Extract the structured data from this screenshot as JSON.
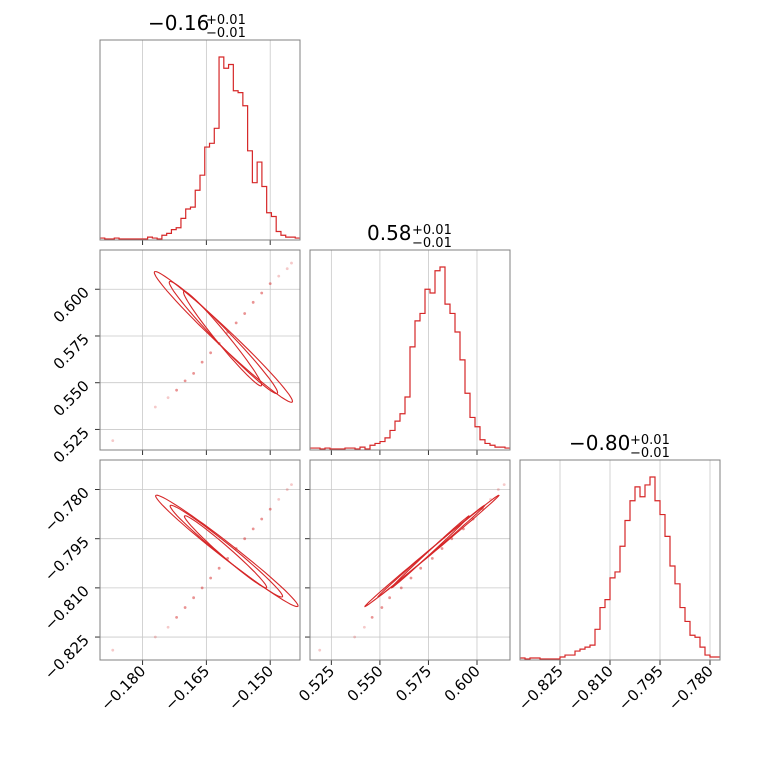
{
  "chart_data": [
    {
      "type": "histogram",
      "title": "−0.16",
      "title_sup": "+0.01",
      "title_sub": "−0.01",
      "param": "p0",
      "color": "#d62728",
      "xlim": [
        -0.19,
        -0.143
      ],
      "xticks": [
        -0.18,
        -0.165,
        -0.15
      ],
      "xticklabels": [
        "−0.180",
        "−0.165",
        "−0.150"
      ],
      "bin_values": [
        0.005,
        0,
        0,
        0.005,
        0,
        0,
        0,
        0,
        0,
        0,
        0.01,
        0.005,
        0,
        0.02,
        0.03,
        0.05,
        0.06,
        0.11,
        0.16,
        0.17,
        0.26,
        0.34,
        0.49,
        0.51,
        0.59,
        0.97,
        0.91,
        0.93,
        0.79,
        0.78,
        0.71,
        0.47,
        0.3,
        0.41,
        0.28,
        0.14,
        0.12,
        0.04,
        0.02,
        0.01,
        0.01,
        0.005
      ]
    },
    {
      "type": "histogram",
      "title": "0.58",
      "title_sup": "+0.01",
      "title_sub": "−0.01",
      "param": "p1",
      "color": "#d62728",
      "xlim": [
        0.514,
        0.617
      ],
      "xticks": [
        0.525,
        0.55,
        0.575,
        0.6
      ],
      "xticklabels": [
        "0.525",
        "0.550",
        "0.575",
        "0.600"
      ],
      "bin_values": [
        0.005,
        0.005,
        0,
        0.005,
        0,
        0,
        0,
        0.005,
        0.005,
        0,
        0.01,
        0,
        0.02,
        0.03,
        0.04,
        0.06,
        0.1,
        0.15,
        0.19,
        0.28,
        0.55,
        0.69,
        0.73,
        0.86,
        0.84,
        0.96,
        0.98,
        0.78,
        0.73,
        0.63,
        0.48,
        0.3,
        0.17,
        0.12,
        0.05,
        0.03,
        0.02,
        0.01,
        0.01,
        0.005
      ]
    },
    {
      "type": "histogram",
      "title": "−0.80",
      "title_sup": "+0.01",
      "title_sub": "−0.01",
      "param": "p2",
      "color": "#d62728",
      "xlim": [
        -0.837,
        -0.777
      ],
      "xticks": [
        -0.825,
        -0.81,
        -0.795,
        -0.78
      ],
      "xticklabels": [
        "−0.825",
        "−0.810",
        "−0.795",
        "−0.780"
      ],
      "bin_values": [
        0.005,
        0,
        0.005,
        0.005,
        0,
        0,
        0,
        0,
        0.01,
        0.02,
        0.02,
        0.04,
        0.05,
        0.06,
        0.07,
        0.15,
        0.26,
        0.3,
        0.41,
        0.44,
        0.57,
        0.7,
        0.8,
        0.87,
        0.82,
        0.88,
        0.92,
        0.8,
        0.73,
        0.62,
        0.47,
        0.38,
        0.26,
        0.19,
        0.12,
        0.11,
        0.06,
        0.02,
        0.01,
        0.01
      ]
    },
    {
      "type": "scatter",
      "subtype": "contour",
      "x_param": "p0",
      "y_param": "p1",
      "color": "#d62728",
      "xlim": [
        -0.19,
        -0.143
      ],
      "ylim": [
        0.514,
        0.621
      ],
      "xticks": [
        -0.18,
        -0.165,
        -0.15
      ],
      "yticks": [
        0.525,
        0.55,
        0.575,
        0.6
      ],
      "yticklabels": [
        "0.525",
        "0.550",
        "0.575",
        "0.600"
      ],
      "x": [
        -0.187,
        -0.177,
        -0.174,
        -0.172,
        -0.17,
        -0.168,
        -0.166,
        -0.164,
        -0.162,
        -0.16,
        -0.158,
        -0.156,
        -0.154,
        -0.152,
        -0.15,
        -0.148,
        -0.146,
        -0.145
      ],
      "y": [
        0.519,
        0.537,
        0.542,
        0.546,
        0.551,
        0.555,
        0.561,
        0.566,
        0.571,
        0.577,
        0.582,
        0.587,
        0.593,
        0.598,
        0.603,
        0.607,
        0.611,
        0.614
      ],
      "contours": [
        {
          "cx": -0.1612,
          "cy": 0.5736,
          "dx": -0.009,
          "dy": 0.0253,
          "w": 0.0018
        },
        {
          "cx": -0.161,
          "cy": 0.5742,
          "dx": -0.0125,
          "dy": 0.03,
          "w": 0.0024
        },
        {
          "cx": -0.161,
          "cy": 0.5745,
          "dx": -0.016,
          "dy": 0.035,
          "w": 0.0028
        }
      ]
    },
    {
      "type": "scatter",
      "subtype": "contour",
      "x_param": "p0",
      "y_param": "p2",
      "color": "#d62728",
      "xlim": [
        -0.19,
        -0.143
      ],
      "ylim": [
        -0.832,
        -0.771
      ],
      "xticks": [
        -0.18,
        -0.165,
        -0.15
      ],
      "yticks": [
        -0.825,
        -0.81,
        -0.795,
        -0.78
      ],
      "yticklabels": [
        "−0.825",
        "−0.810",
        "−0.795",
        "−0.780"
      ],
      "x": [
        -0.187,
        -0.177,
        -0.174,
        -0.172,
        -0.17,
        -0.168,
        -0.166,
        -0.164,
        -0.162,
        -0.16,
        -0.158,
        -0.156,
        -0.154,
        -0.152,
        -0.15,
        -0.148,
        -0.146,
        -0.145
      ],
      "y": [
        -0.829,
        -0.825,
        -0.822,
        -0.819,
        -0.816,
        -0.813,
        -0.81,
        -0.807,
        -0.804,
        -0.801,
        -0.798,
        -0.795,
        -0.792,
        -0.789,
        -0.786,
        -0.783,
        -0.78,
        -0.7785
      ],
      "contours": [
        {
          "cx": -0.1605,
          "cy": -0.799,
          "dx": -0.0095,
          "dy": 0.011,
          "w": 0.0018
        },
        {
          "cx": -0.1603,
          "cy": -0.7988,
          "dx": -0.013,
          "dy": 0.014,
          "w": 0.0024
        },
        {
          "cx": -0.1602,
          "cy": -0.7987,
          "dx": -0.0165,
          "dy": 0.017,
          "w": 0.0028
        }
      ]
    },
    {
      "type": "scatter",
      "subtype": "contour",
      "x_param": "p1",
      "y_param": "p2",
      "color": "#d62728",
      "xlim": [
        0.514,
        0.617
      ],
      "ylim": [
        -0.832,
        -0.771
      ],
      "xticks": [
        0.525,
        0.55,
        0.575,
        0.6
      ],
      "yticks": [
        -0.825,
        -0.81,
        -0.795,
        -0.78
      ],
      "x": [
        0.519,
        0.537,
        0.542,
        0.546,
        0.551,
        0.555,
        0.561,
        0.566,
        0.571,
        0.577,
        0.582,
        0.587,
        0.593,
        0.598,
        0.603,
        0.607,
        0.611,
        0.614
      ],
      "y": [
        -0.829,
        -0.825,
        -0.822,
        -0.819,
        -0.816,
        -0.813,
        -0.81,
        -0.807,
        -0.804,
        -0.801,
        -0.798,
        -0.795,
        -0.792,
        -0.789,
        -0.786,
        -0.783,
        -0.78,
        -0.7785
      ],
      "contours": [
        {
          "cx": 0.576,
          "cy": -0.799,
          "dx": 0.02,
          "dy": 0.011,
          "w": 0.0012
        },
        {
          "cx": 0.5765,
          "cy": -0.7988,
          "dx": 0.0275,
          "dy": 0.014,
          "w": 0.0015
        },
        {
          "cx": 0.5768,
          "cy": -0.7987,
          "dx": 0.0345,
          "dy": 0.017,
          "w": 0.0018
        }
      ]
    }
  ]
}
